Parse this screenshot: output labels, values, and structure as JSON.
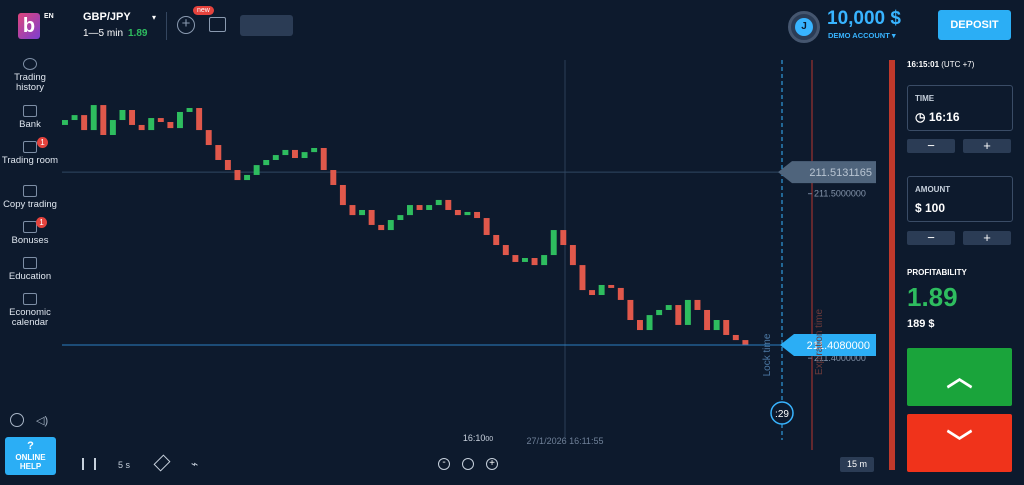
{
  "header": {
    "logo": "b",
    "language": "EN",
    "asset": "GBP/JPY",
    "timeframe": "1—5 min",
    "payout": "1.89",
    "new_badge": "new",
    "avatar": "J",
    "balance": "10,000 $",
    "account": "DEMO ACCOUNT",
    "deposit": "DEPOSIT"
  },
  "sidebar": {
    "items": [
      "Trading history",
      "Bank",
      "Trading room",
      "Copy trading",
      "Bonuses",
      "Education",
      "Economic calendar"
    ],
    "badges": {
      "trading_room": "1",
      "bonuses": "1"
    },
    "help_icon": "?",
    "help": "ONLINE HELP"
  },
  "panel": {
    "clock": "16:15:01",
    "timezone": "(UTC +7)",
    "time_label": "TIME",
    "time": "16:16",
    "amount_label": "AMOUNT",
    "amount": "$ 100",
    "profitability_label": "PROFITABILITY",
    "profitability": "1.89",
    "profit": "189 $"
  },
  "chart": {
    "type": "candlestick",
    "ylim": [
      211.3472,
      211.5813
    ],
    "yticks": [
      {
        "value": 211.5,
        "label": "211.5000000"
      },
      {
        "value": 211.4,
        "label": "211.4000000"
      }
    ],
    "level": {
      "value": 211.5131165,
      "label": "211.5131165"
    },
    "current": {
      "value": 211.408,
      "label": "211.4080000"
    },
    "opens": [
      211.5418,
      211.5448,
      211.5478,
      211.5387,
      211.5539,
      211.5357,
      211.5448,
      211.5509,
      211.5418,
      211.5387,
      211.546,
      211.5436,
      211.5399,
      211.5497,
      211.5521,
      211.5387,
      211.5296,
      211.5205,
      211.5144,
      211.5083,
      211.5114,
      211.5174,
      211.5205,
      211.5235,
      211.5266,
      211.5217,
      211.5253,
      211.5278,
      211.5144,
      211.5053,
      211.4931,
      211.487,
      211.4901,
      211.481,
      211.4779,
      211.484,
      211.487,
      211.4931,
      211.4901,
      211.4931,
      211.4962,
      211.4901,
      211.487,
      211.4889,
      211.4852,
      211.4749,
      211.4688,
      211.4627,
      211.4585,
      211.4609,
      211.4566,
      211.4627,
      211.4779,
      211.4688,
      211.4566,
      211.4414,
      211.4384,
      211.4445,
      211.4427,
      211.4354,
      211.4232,
      211.4171,
      211.4262,
      211.4293,
      211.4323,
      211.4202,
      211.4354,
      211.4293,
      211.4171,
      211.4232,
      211.4141,
      211.411
    ],
    "closes": [
      211.5448,
      211.5478,
      211.5387,
      211.5539,
      211.5357,
      211.5448,
      211.5509,
      211.5418,
      211.5387,
      211.546,
      211.5436,
      211.5399,
      211.5497,
      211.5521,
      211.5387,
      211.5296,
      211.5205,
      211.5144,
      211.5083,
      211.5114,
      211.5174,
      211.5205,
      211.5235,
      211.5266,
      211.5217,
      211.5253,
      211.5278,
      211.5144,
      211.5053,
      211.4931,
      211.487,
      211.4901,
      211.481,
      211.4779,
      211.484,
      211.487,
      211.4931,
      211.4901,
      211.4931,
      211.4962,
      211.4901,
      211.487,
      211.4889,
      211.4852,
      211.4749,
      211.4688,
      211.4627,
      211.4585,
      211.4609,
      211.4566,
      211.4627,
      211.4779,
      211.4688,
      211.4566,
      211.4414,
      211.4384,
      211.4445,
      211.4427,
      211.4354,
      211.4232,
      211.4171,
      211.4262,
      211.4293,
      211.4323,
      211.4202,
      211.4354,
      211.4293,
      211.4171,
      211.4232,
      211.4141,
      211.411,
      211.408
    ],
    "up_color": "#2ebd5f",
    "down_color": "#e0584b",
    "x_tick_time": "16:10",
    "x_tick_seconds": "00",
    "crosshair_time": "27/1/2026 16:11:55",
    "lock_label": "Lock time",
    "expiration_label": "Expiration time",
    "countdown": ":29"
  },
  "toolbar": {
    "interval": "5 s",
    "zoom": "15 m"
  }
}
